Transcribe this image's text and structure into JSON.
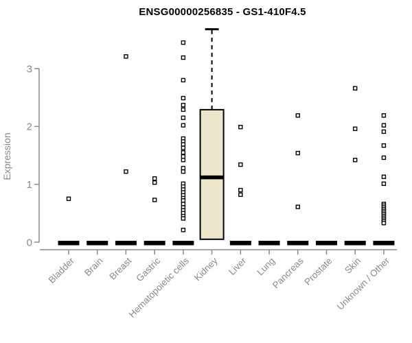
{
  "chart_data": {
    "type": "box",
    "title": "ENSG00000256835 - GS1-410F4.5",
    "ylabel": "Expression",
    "xlabel": "",
    "ylim": [
      0,
      3.8
    ],
    "yticks": [
      0,
      1,
      2,
      3
    ],
    "grid": false,
    "legend": "none",
    "categories": [
      "Bladder",
      "Brain",
      "Breast",
      "Gastric",
      "Hematopoietic cells",
      "Kidney",
      "Liver",
      "Lung",
      "Pancreas",
      "Prostate",
      "Skin",
      "Unknown / Other"
    ],
    "boxes": [
      {
        "category": "Bladder",
        "q1": 0,
        "median": 0,
        "q3": 0,
        "whisker_low": 0,
        "whisker_high": 0
      },
      {
        "category": "Brain",
        "q1": 0,
        "median": 0,
        "q3": 0,
        "whisker_low": 0,
        "whisker_high": 0
      },
      {
        "category": "Breast",
        "q1": 0,
        "median": 0,
        "q3": 0,
        "whisker_low": 0,
        "whisker_high": 0
      },
      {
        "category": "Gastric",
        "q1": 0,
        "median": 0,
        "q3": 0,
        "whisker_low": 0,
        "whisker_high": 0
      },
      {
        "category": "Hematopoietic cells",
        "q1": 0,
        "median": 0,
        "q3": 0,
        "whisker_low": 0,
        "whisker_high": 0
      },
      {
        "category": "Kidney",
        "q1": 0.05,
        "median": 1.12,
        "q3": 2.29,
        "whisker_low": 0.05,
        "whisker_high": 3.68
      },
      {
        "category": "Liver",
        "q1": 0,
        "median": 0,
        "q3": 0,
        "whisker_low": 0,
        "whisker_high": 0
      },
      {
        "category": "Lung",
        "q1": 0,
        "median": 0,
        "q3": 0,
        "whisker_low": 0,
        "whisker_high": 0
      },
      {
        "category": "Pancreas",
        "q1": 0,
        "median": 0,
        "q3": 0,
        "whisker_low": 0,
        "whisker_high": 0
      },
      {
        "category": "Prostate",
        "q1": 0,
        "median": 0,
        "q3": 0,
        "whisker_low": 0,
        "whisker_high": 0
      },
      {
        "category": "Skin",
        "q1": 0,
        "median": 0,
        "q3": 0,
        "whisker_low": 0,
        "whisker_high": 0
      },
      {
        "category": "Unknown / Other",
        "q1": 0,
        "median": 0,
        "q3": 0,
        "whisker_low": 0,
        "whisker_high": 0
      }
    ],
    "outliers": [
      {
        "category": "Bladder",
        "values": [
          0.75
        ]
      },
      {
        "category": "Brain",
        "values": []
      },
      {
        "category": "Breast",
        "values": [
          3.21,
          1.22
        ]
      },
      {
        "category": "Gastric",
        "values": [
          1.1,
          1.03,
          0.73
        ]
      },
      {
        "category": "Hematopoietic cells",
        "values": [
          3.45,
          3.19,
          2.8,
          2.49,
          2.37,
          2.29,
          2.15,
          2.02,
          1.79,
          1.74,
          1.69,
          1.63,
          1.55,
          1.48,
          1.42,
          1.28,
          1.22,
          1.01,
          0.96,
          0.91,
          0.86,
          0.81,
          0.76,
          0.72,
          0.66,
          0.6,
          0.55,
          0.5,
          0.45,
          0.41,
          0.21
        ]
      },
      {
        "category": "Kidney",
        "values": []
      },
      {
        "category": "Liver",
        "values": [
          1.99,
          1.34,
          0.9,
          0.82
        ]
      },
      {
        "category": "Lung",
        "values": []
      },
      {
        "category": "Pancreas",
        "values": [
          2.19,
          1.54,
          0.61
        ]
      },
      {
        "category": "Prostate",
        "values": []
      },
      {
        "category": "Skin",
        "values": [
          2.66,
          1.96,
          1.42
        ]
      },
      {
        "category": "Unknown / Other",
        "values": [
          2.19,
          2.02,
          1.91,
          1.67,
          1.46,
          1.13,
          1.01,
          0.66,
          0.63,
          0.6,
          0.57,
          0.54,
          0.51,
          0.48,
          0.45,
          0.42,
          0.39,
          0.36,
          0.33
        ]
      }
    ],
    "colors": {
      "box_fill": "#EDE6CD",
      "box_stroke": "#000000",
      "median": "#000000",
      "axis_line": "#888888",
      "axis_text": "#8A8A8A",
      "title_text": "#000000",
      "outlier_stroke": "#000000",
      "background": "#FFFFFF"
    }
  }
}
